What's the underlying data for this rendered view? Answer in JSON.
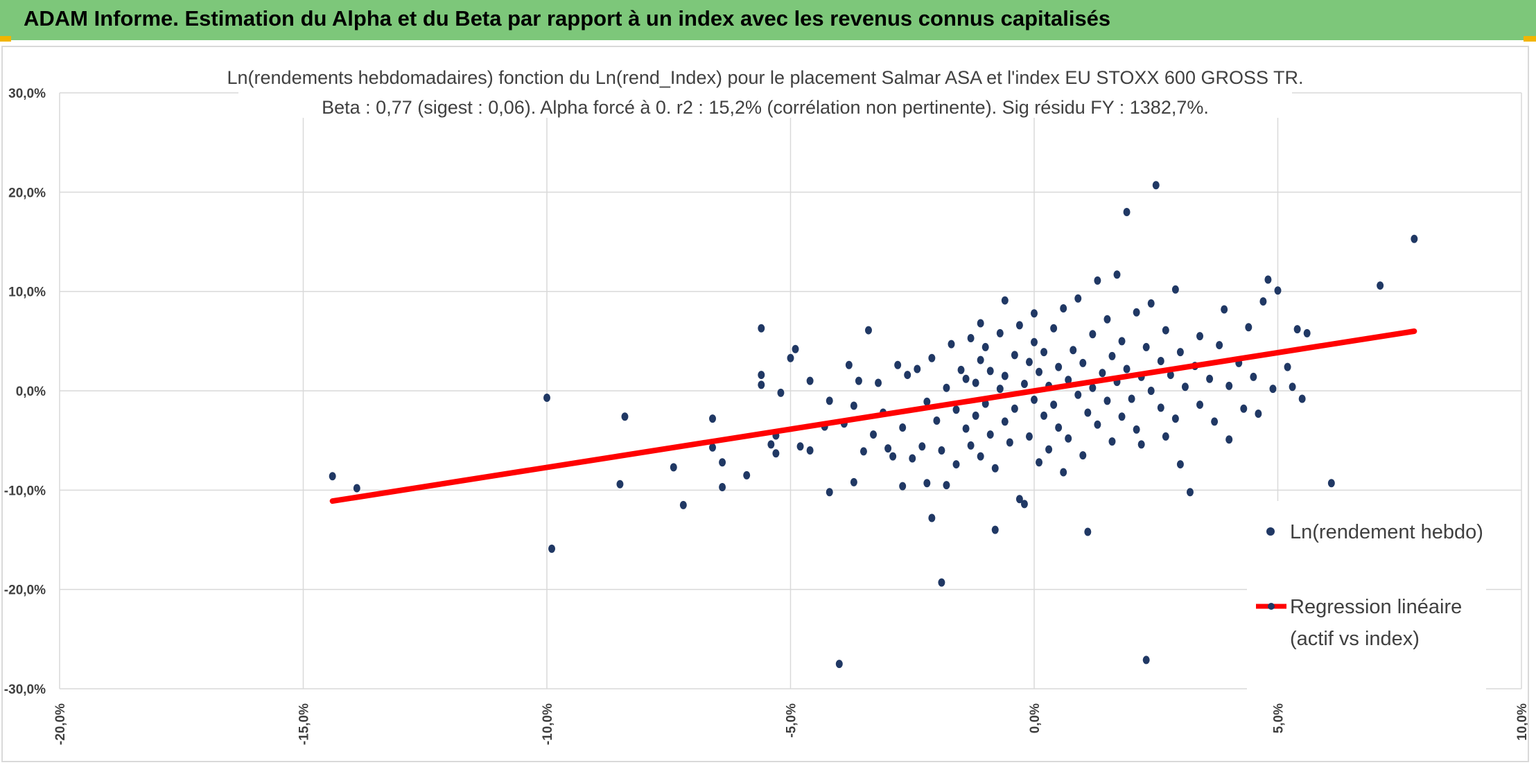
{
  "banner": {
    "title": "ADAM Informe. Estimation du Alpha et du Beta par rapport à un index avec les revenus connus capitalisés",
    "bg_color": "#7dc77a"
  },
  "chart_data": {
    "type": "scatter",
    "title": "Ln(rendements hebdomadaires) fonction du Ln(rend_Index) pour le placement Salmar ASA et l'index EU STOXX 600 GROSS TR.",
    "subtitle": "Beta : 0,77 (sigest : 0,06). Alpha forcé à 0. r2 : 15,2% (corrélation non pertinente). Sig résidu FY : 1382,7%.",
    "xlabel": "",
    "ylabel": "",
    "xlim": [
      -20,
      10
    ],
    "ylim": [
      -30,
      30
    ],
    "x_ticks": [
      -20,
      -15,
      -10,
      -5,
      0,
      5,
      10
    ],
    "x_tick_labels": [
      "-20,0%",
      "-15,0%",
      "-10,0%",
      "-5,0%",
      "0,0%",
      "5,0%",
      "10,0%"
    ],
    "y_ticks": [
      30,
      20,
      10,
      0,
      -10,
      -20,
      -30
    ],
    "y_tick_labels": [
      "30,0%",
      "20,0%",
      "10,0%",
      "0,0%",
      "-10,0%",
      "-20,0%",
      "-30,0%"
    ],
    "grid": true,
    "legend_position": "right",
    "colors": {
      "points": "#203864",
      "regression": "#ff0000",
      "grid": "#d9d9d9"
    },
    "series": [
      {
        "name": "Ln(rendement hebdo)",
        "kind": "scatter",
        "points": [
          [
            -14.4,
            -8.6
          ],
          [
            -13.9,
            -9.8
          ],
          [
            -10.0,
            -0.7
          ],
          [
            -9.9,
            -15.9
          ],
          [
            -8.4,
            -2.6
          ],
          [
            -8.5,
            -9.4
          ],
          [
            -7.4,
            -7.7
          ],
          [
            -7.2,
            -11.5
          ],
          [
            -6.6,
            -2.8
          ],
          [
            -6.6,
            -5.7
          ],
          [
            -6.4,
            -7.2
          ],
          [
            -6.4,
            -9.7
          ],
          [
            -5.9,
            -8.5
          ],
          [
            -5.6,
            6.3
          ],
          [
            -5.6,
            1.6
          ],
          [
            -5.6,
            0.6
          ],
          [
            -5.4,
            -5.4
          ],
          [
            -5.3,
            -4.5
          ],
          [
            -5.3,
            -6.3
          ],
          [
            -5.2,
            -0.2
          ],
          [
            -5.0,
            3.3
          ],
          [
            -4.9,
            4.2
          ],
          [
            -4.8,
            -5.6
          ],
          [
            -4.6,
            -6.0
          ],
          [
            -4.6,
            1.0
          ],
          [
            -4.3,
            -3.6
          ],
          [
            -4.2,
            -1.0
          ],
          [
            -4.2,
            -10.2
          ],
          [
            -4.0,
            -27.5
          ],
          [
            -3.9,
            -3.3
          ],
          [
            -3.8,
            2.6
          ],
          [
            -3.7,
            -1.5
          ],
          [
            -3.7,
            -9.2
          ],
          [
            -3.6,
            1.0
          ],
          [
            -3.5,
            -6.1
          ],
          [
            -3.4,
            6.1
          ],
          [
            -3.3,
            -4.4
          ],
          [
            -3.2,
            0.8
          ],
          [
            -3.1,
            -2.2
          ],
          [
            -3.0,
            -5.8
          ],
          [
            -2.9,
            -6.6
          ],
          [
            -2.8,
            2.6
          ],
          [
            -2.7,
            -3.7
          ],
          [
            -2.7,
            -9.6
          ],
          [
            -2.6,
            1.6
          ],
          [
            -2.5,
            -6.8
          ],
          [
            -2.4,
            2.2
          ],
          [
            -2.3,
            -5.6
          ],
          [
            -2.2,
            -1.1
          ],
          [
            -2.2,
            -9.3
          ],
          [
            -2.1,
            -12.8
          ],
          [
            -2.1,
            3.3
          ],
          [
            -2.0,
            -3.0
          ],
          [
            -1.9,
            -19.3
          ],
          [
            -1.9,
            -6.0
          ],
          [
            -1.8,
            0.3
          ],
          [
            -1.8,
            -9.5
          ],
          [
            -1.7,
            4.7
          ],
          [
            -1.6,
            -1.9
          ],
          [
            -1.6,
            -7.4
          ],
          [
            -1.5,
            2.1
          ],
          [
            -1.4,
            -3.8
          ],
          [
            -1.4,
            1.2
          ],
          [
            -1.3,
            5.3
          ],
          [
            -1.3,
            -5.5
          ],
          [
            -1.2,
            0.8
          ],
          [
            -1.2,
            -2.5
          ],
          [
            -1.1,
            3.1
          ],
          [
            -1.1,
            -6.6
          ],
          [
            -1.1,
            6.8
          ],
          [
            -1.0,
            -1.3
          ],
          [
            -1.0,
            4.4
          ],
          [
            -0.9,
            -4.4
          ],
          [
            -0.9,
            2.0
          ],
          [
            -0.8,
            -7.8
          ],
          [
            -0.8,
            -14.0
          ],
          [
            -0.7,
            0.2
          ],
          [
            -0.7,
            5.8
          ],
          [
            -0.6,
            -3.1
          ],
          [
            -0.6,
            9.1
          ],
          [
            -0.6,
            1.5
          ],
          [
            -0.5,
            -5.2
          ],
          [
            -0.4,
            3.6
          ],
          [
            -0.4,
            -1.8
          ],
          [
            -0.3,
            6.6
          ],
          [
            -0.3,
            -10.9
          ],
          [
            -0.2,
            0.7
          ],
          [
            -0.2,
            -11.4
          ],
          [
            -0.1,
            2.9
          ],
          [
            -0.1,
            -4.6
          ],
          [
            0.0,
            -0.9
          ],
          [
            0.0,
            4.9
          ],
          [
            0.0,
            7.8
          ],
          [
            0.1,
            -7.2
          ],
          [
            0.1,
            1.9
          ],
          [
            0.2,
            -2.5
          ],
          [
            0.2,
            3.9
          ],
          [
            0.3,
            -5.9
          ],
          [
            0.3,
            0.5
          ],
          [
            0.4,
            6.3
          ],
          [
            0.4,
            -1.4
          ],
          [
            0.5,
            2.4
          ],
          [
            0.5,
            -3.7
          ],
          [
            0.6,
            8.3
          ],
          [
            0.6,
            -8.2
          ],
          [
            0.7,
            1.1
          ],
          [
            0.7,
            -4.8
          ],
          [
            0.8,
            4.1
          ],
          [
            0.9,
            -0.4
          ],
          [
            0.9,
            9.3
          ],
          [
            1.0,
            2.8
          ],
          [
            1.0,
            -6.5
          ],
          [
            1.1,
            -2.2
          ],
          [
            1.1,
            -14.2
          ],
          [
            1.2,
            5.7
          ],
          [
            1.2,
            0.3
          ],
          [
            1.3,
            11.1
          ],
          [
            1.3,
            -3.4
          ],
          [
            1.4,
            1.8
          ],
          [
            1.5,
            7.2
          ],
          [
            1.5,
            -1.0
          ],
          [
            1.6,
            3.5
          ],
          [
            1.6,
            -5.1
          ],
          [
            1.7,
            0.9
          ],
          [
            1.7,
            11.7
          ],
          [
            1.8,
            5.0
          ],
          [
            1.8,
            -2.6
          ],
          [
            1.9,
            18.0
          ],
          [
            1.9,
            2.2
          ],
          [
            2.0,
            -0.8
          ],
          [
            2.1,
            7.9
          ],
          [
            2.1,
            -3.9
          ],
          [
            2.2,
            1.4
          ],
          [
            2.2,
            -5.4
          ],
          [
            2.3,
            4.4
          ],
          [
            2.3,
            -27.1
          ],
          [
            2.4,
            0.0
          ],
          [
            2.4,
            8.8
          ],
          [
            2.5,
            20.7
          ],
          [
            2.6,
            -1.7
          ],
          [
            2.6,
            3.0
          ],
          [
            2.7,
            6.1
          ],
          [
            2.7,
            -4.6
          ],
          [
            2.8,
            1.6
          ],
          [
            2.9,
            -2.8
          ],
          [
            2.9,
            10.2
          ],
          [
            3.0,
            3.9
          ],
          [
            3.0,
            -7.4
          ],
          [
            3.1,
            0.4
          ],
          [
            3.2,
            -10.2
          ],
          [
            3.3,
            2.5
          ],
          [
            3.4,
            5.5
          ],
          [
            3.4,
            -1.4
          ],
          [
            3.6,
            1.2
          ],
          [
            3.7,
            -3.1
          ],
          [
            3.8,
            4.6
          ],
          [
            3.9,
            8.2
          ],
          [
            4.0,
            0.5
          ],
          [
            4.0,
            -4.9
          ],
          [
            4.2,
            2.8
          ],
          [
            4.3,
            -1.8
          ],
          [
            4.4,
            6.4
          ],
          [
            4.5,
            1.4
          ],
          [
            4.6,
            -2.3
          ],
          [
            4.7,
            9.0
          ],
          [
            4.8,
            11.2
          ],
          [
            4.9,
            0.2
          ],
          [
            5.0,
            10.1
          ],
          [
            5.1,
            -14.3
          ],
          [
            5.2,
            2.4
          ],
          [
            5.3,
            0.4
          ],
          [
            5.4,
            6.2
          ],
          [
            5.5,
            -0.8
          ],
          [
            5.6,
            5.8
          ],
          [
            6.1,
            -9.3
          ],
          [
            7.1,
            10.6
          ],
          [
            7.8,
            15.3
          ]
        ]
      },
      {
        "name": "Regression linéaire (actif vs index)",
        "kind": "line",
        "points": [
          [
            -14.4,
            -11.1
          ],
          [
            7.8,
            6.0
          ]
        ]
      }
    ]
  }
}
